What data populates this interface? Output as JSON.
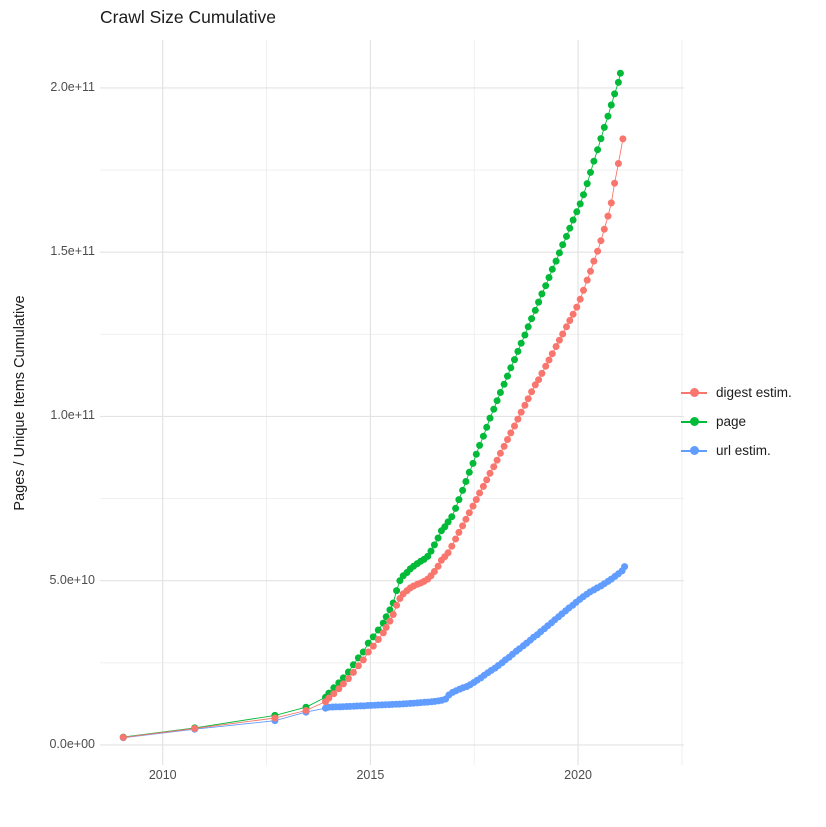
{
  "chart": {
    "title": "Crawl Size Cumulative",
    "ylabel": "Pages / Unique Items Cumulative",
    "xlabel": ""
  },
  "colors": {
    "digest_estim": "#F8766D",
    "page": "#00BA38",
    "url_estim": "#619CFF",
    "grid_major": "#E3E3E3",
    "grid_minor": "#EEEEEE",
    "tick_text": "#4D4D4D",
    "title_text": "#1C1C1C",
    "background": "#FFFFFF"
  },
  "chart_data": {
    "type": "line",
    "markers": true,
    "title": "Crawl Size Cumulative",
    "xlabel": "",
    "ylabel": "Pages / Unique Items Cumulative",
    "x_unit": "year",
    "y_unit": "count (values in billions, 1e9)",
    "xlim": [
      2008.49,
      2022.55
    ],
    "ylim_e9": [
      -6.1,
      214.6
    ],
    "grid": true,
    "legend_position": "right",
    "x_ticks": [
      {
        "value": 2010,
        "label": "2010"
      },
      {
        "value": 2015,
        "label": "2015"
      },
      {
        "value": 2020,
        "label": "2020"
      }
    ],
    "y_ticks": [
      {
        "value_e9": 0,
        "label": "0.0e+00"
      },
      {
        "value_e9": 50,
        "label": "5.0e+10"
      },
      {
        "value_e9": 100,
        "label": "1.0e+11"
      },
      {
        "value_e9": 150,
        "label": "1.5e+11"
      },
      {
        "value_e9": 200,
        "label": "2.0e+11"
      }
    ],
    "x_minor": [
      2012.5,
      2017.5,
      2022.5
    ],
    "y_minor_e9": [
      25,
      75,
      125,
      175
    ],
    "series": [
      {
        "name": "url estim.",
        "color": "#619CFF",
        "points_year_e9": [
          [
            2009.05,
            2.2
          ],
          [
            2010.77,
            4.8
          ],
          [
            2012.7,
            7.4
          ],
          [
            2013.45,
            10.0
          ],
          [
            2013.92,
            11.2
          ],
          [
            2014.0,
            11.5
          ],
          [
            2014.09,
            11.55
          ],
          [
            2014.17,
            11.6
          ],
          [
            2014.26,
            11.6
          ],
          [
            2014.34,
            11.65
          ],
          [
            2014.43,
            11.7
          ],
          [
            2014.51,
            11.75
          ],
          [
            2014.6,
            11.8
          ],
          [
            2014.68,
            11.85
          ],
          [
            2014.77,
            11.9
          ],
          [
            2014.85,
            11.9
          ],
          [
            2014.94,
            12.0
          ],
          [
            2015.02,
            12.05
          ],
          [
            2015.11,
            12.1
          ],
          [
            2015.19,
            12.15
          ],
          [
            2015.28,
            12.2
          ],
          [
            2015.36,
            12.25
          ],
          [
            2015.45,
            12.3
          ],
          [
            2015.53,
            12.35
          ],
          [
            2015.62,
            12.4
          ],
          [
            2015.7,
            12.45
          ],
          [
            2015.79,
            12.5
          ],
          [
            2015.87,
            12.55
          ],
          [
            2015.96,
            12.65
          ],
          [
            2016.04,
            12.7
          ],
          [
            2016.13,
            12.8
          ],
          [
            2016.21,
            12.9
          ],
          [
            2016.3,
            13.0
          ],
          [
            2016.38,
            13.05
          ],
          [
            2016.47,
            13.15
          ],
          [
            2016.55,
            13.25
          ],
          [
            2016.64,
            13.4
          ],
          [
            2016.72,
            13.6
          ],
          [
            2016.81,
            14.0
          ],
          [
            2016.89,
            15.2
          ],
          [
            2016.98,
            16.0
          ],
          [
            2017.06,
            16.5
          ],
          [
            2017.15,
            17.0
          ],
          [
            2017.23,
            17.4
          ],
          [
            2017.32,
            17.8
          ],
          [
            2017.4,
            18.3
          ],
          [
            2017.49,
            19.0
          ],
          [
            2017.57,
            19.7
          ],
          [
            2017.66,
            20.4
          ],
          [
            2017.74,
            21.2
          ],
          [
            2017.83,
            22.0
          ],
          [
            2017.91,
            22.7
          ],
          [
            2018.0,
            23.4
          ],
          [
            2018.08,
            24.2
          ],
          [
            2018.17,
            25.0
          ],
          [
            2018.25,
            25.9
          ],
          [
            2018.34,
            26.7
          ],
          [
            2018.42,
            27.6
          ],
          [
            2018.51,
            28.5
          ],
          [
            2018.59,
            29.3
          ],
          [
            2018.68,
            30.2
          ],
          [
            2018.76,
            31.0
          ],
          [
            2018.85,
            31.9
          ],
          [
            2018.93,
            32.8
          ],
          [
            2019.02,
            33.6
          ],
          [
            2019.1,
            34.5
          ],
          [
            2019.19,
            35.4
          ],
          [
            2019.27,
            36.3
          ],
          [
            2019.36,
            37.2
          ],
          [
            2019.44,
            38.1
          ],
          [
            2019.53,
            39.0
          ],
          [
            2019.61,
            39.9
          ],
          [
            2019.7,
            40.8
          ],
          [
            2019.78,
            41.7
          ],
          [
            2019.87,
            42.5
          ],
          [
            2019.95,
            43.4
          ],
          [
            2020.04,
            44.3
          ],
          [
            2020.12,
            45.1
          ],
          [
            2020.21,
            45.9
          ],
          [
            2020.29,
            46.6
          ],
          [
            2020.38,
            47.2
          ],
          [
            2020.46,
            47.8
          ],
          [
            2020.55,
            48.4
          ],
          [
            2020.63,
            49.1
          ],
          [
            2020.72,
            49.8
          ],
          [
            2020.8,
            50.5
          ],
          [
            2020.89,
            51.3
          ],
          [
            2020.97,
            52.1
          ],
          [
            2021.06,
            53.0
          ],
          [
            2021.12,
            54.3
          ]
        ]
      },
      {
        "name": "page",
        "color": "#00BA38",
        "points_year_e9": [
          [
            2009.05,
            2.4
          ],
          [
            2010.77,
            5.2
          ],
          [
            2012.7,
            9.0
          ],
          [
            2013.45,
            11.5
          ],
          [
            2013.92,
            14.5
          ],
          [
            2014.0,
            15.8
          ],
          [
            2014.12,
            17.4
          ],
          [
            2014.24,
            18.9
          ],
          [
            2014.35,
            20.4
          ],
          [
            2014.47,
            22.2
          ],
          [
            2014.59,
            24.4
          ],
          [
            2014.71,
            26.5
          ],
          [
            2014.83,
            28.3
          ],
          [
            2014.95,
            31.0
          ],
          [
            2015.07,
            32.9
          ],
          [
            2015.19,
            35.0
          ],
          [
            2015.31,
            37.1
          ],
          [
            2015.38,
            39.0
          ],
          [
            2015.47,
            41.1
          ],
          [
            2015.55,
            43.2
          ],
          [
            2015.63,
            47.0
          ],
          [
            2015.71,
            50.0
          ],
          [
            2015.79,
            51.5
          ],
          [
            2015.88,
            52.5
          ],
          [
            2015.96,
            53.6
          ],
          [
            2016.04,
            54.4
          ],
          [
            2016.13,
            55.2
          ],
          [
            2016.21,
            55.9
          ],
          [
            2016.29,
            56.5
          ],
          [
            2016.38,
            57.4
          ],
          [
            2016.46,
            59.0
          ],
          [
            2016.54,
            60.9
          ],
          [
            2016.63,
            63.0
          ],
          [
            2016.71,
            65.2
          ],
          [
            2016.79,
            66.4
          ],
          [
            2016.87,
            67.9
          ],
          [
            2016.96,
            69.5
          ],
          [
            2017.05,
            72.0
          ],
          [
            2017.13,
            74.7
          ],
          [
            2017.22,
            77.5
          ],
          [
            2017.3,
            80.2
          ],
          [
            2017.38,
            83.0
          ],
          [
            2017.47,
            85.7
          ],
          [
            2017.55,
            88.5
          ],
          [
            2017.63,
            91.2
          ],
          [
            2017.72,
            94.0
          ],
          [
            2017.8,
            96.7
          ],
          [
            2017.88,
            99.5
          ],
          [
            2017.97,
            102.2
          ],
          [
            2018.05,
            104.8
          ],
          [
            2018.13,
            107.3
          ],
          [
            2018.22,
            109.8
          ],
          [
            2018.3,
            112.3
          ],
          [
            2018.38,
            114.8
          ],
          [
            2018.47,
            117.3
          ],
          [
            2018.55,
            119.8
          ],
          [
            2018.63,
            122.3
          ],
          [
            2018.72,
            124.8
          ],
          [
            2018.8,
            127.3
          ],
          [
            2018.88,
            129.8
          ],
          [
            2018.97,
            132.3
          ],
          [
            2019.05,
            134.8
          ],
          [
            2019.13,
            137.3
          ],
          [
            2019.22,
            139.8
          ],
          [
            2019.3,
            142.3
          ],
          [
            2019.38,
            144.8
          ],
          [
            2019.47,
            147.3
          ],
          [
            2019.55,
            149.8
          ],
          [
            2019.63,
            152.3
          ],
          [
            2019.72,
            154.8
          ],
          [
            2019.8,
            157.3
          ],
          [
            2019.88,
            159.8
          ],
          [
            2019.97,
            162.3
          ],
          [
            2020.05,
            164.7
          ],
          [
            2020.13,
            167.5
          ],
          [
            2020.22,
            170.9
          ],
          [
            2020.3,
            174.3
          ],
          [
            2020.38,
            177.7
          ],
          [
            2020.47,
            181.2
          ],
          [
            2020.55,
            184.6
          ],
          [
            2020.63,
            188.0
          ],
          [
            2020.72,
            191.4
          ],
          [
            2020.8,
            194.8
          ],
          [
            2020.88,
            198.2
          ],
          [
            2020.97,
            201.7
          ],
          [
            2021.02,
            204.5
          ]
        ]
      },
      {
        "name": "digest estim.",
        "color": "#F8766D",
        "points_year_e9": [
          [
            2009.05,
            2.3
          ],
          [
            2010.77,
            5.0
          ],
          [
            2012.7,
            8.2
          ],
          [
            2013.45,
            10.5
          ],
          [
            2013.92,
            13.2
          ],
          [
            2014.0,
            14.3
          ],
          [
            2014.12,
            15.6
          ],
          [
            2014.24,
            17.1
          ],
          [
            2014.35,
            18.6
          ],
          [
            2014.47,
            20.2
          ],
          [
            2014.59,
            22.1
          ],
          [
            2014.71,
            24.1
          ],
          [
            2014.83,
            25.9
          ],
          [
            2014.95,
            28.3
          ],
          [
            2015.07,
            30.1
          ],
          [
            2015.19,
            32.1
          ],
          [
            2015.31,
            34.1
          ],
          [
            2015.38,
            35.8
          ],
          [
            2015.47,
            37.7
          ],
          [
            2015.55,
            39.7
          ],
          [
            2015.63,
            42.5
          ],
          [
            2015.71,
            44.6
          ],
          [
            2015.79,
            46.0
          ],
          [
            2015.88,
            47.0
          ],
          [
            2015.96,
            47.8
          ],
          [
            2016.04,
            48.4
          ],
          [
            2016.13,
            48.9
          ],
          [
            2016.21,
            49.3
          ],
          [
            2016.29,
            49.8
          ],
          [
            2016.38,
            50.5
          ],
          [
            2016.46,
            51.5
          ],
          [
            2016.54,
            52.8
          ],
          [
            2016.63,
            54.4
          ],
          [
            2016.71,
            56.2
          ],
          [
            2016.79,
            57.3
          ],
          [
            2016.87,
            58.5
          ],
          [
            2016.96,
            60.5
          ],
          [
            2017.05,
            62.7
          ],
          [
            2017.13,
            64.7
          ],
          [
            2017.22,
            66.7
          ],
          [
            2017.3,
            68.7
          ],
          [
            2017.38,
            70.7
          ],
          [
            2017.47,
            72.7
          ],
          [
            2017.55,
            74.7
          ],
          [
            2017.63,
            76.7
          ],
          [
            2017.72,
            78.7
          ],
          [
            2017.8,
            80.7
          ],
          [
            2017.88,
            82.7
          ],
          [
            2017.97,
            84.7
          ],
          [
            2018.05,
            86.7
          ],
          [
            2018.13,
            88.8
          ],
          [
            2018.22,
            90.9
          ],
          [
            2018.3,
            93.0
          ],
          [
            2018.38,
            95.0
          ],
          [
            2018.47,
            97.1
          ],
          [
            2018.55,
            99.2
          ],
          [
            2018.63,
            101.3
          ],
          [
            2018.72,
            103.4
          ],
          [
            2018.8,
            105.4
          ],
          [
            2018.88,
            107.5
          ],
          [
            2018.97,
            109.6
          ],
          [
            2019.05,
            111.2
          ],
          [
            2019.13,
            113.1
          ],
          [
            2019.22,
            115.3
          ],
          [
            2019.3,
            117.2
          ],
          [
            2019.38,
            119.1
          ],
          [
            2019.47,
            121.3
          ],
          [
            2019.55,
            123.2
          ],
          [
            2019.63,
            125.1
          ],
          [
            2019.72,
            127.3
          ],
          [
            2019.8,
            129.2
          ],
          [
            2019.88,
            131.1
          ],
          [
            2019.97,
            133.3
          ],
          [
            2020.05,
            135.7
          ],
          [
            2020.13,
            138.4
          ],
          [
            2020.22,
            141.5
          ],
          [
            2020.3,
            144.2
          ],
          [
            2020.38,
            147.3
          ],
          [
            2020.47,
            150.3
          ],
          [
            2020.55,
            153.5
          ],
          [
            2020.63,
            157.0
          ],
          [
            2020.72,
            161.0
          ],
          [
            2020.8,
            165.0
          ],
          [
            2020.88,
            171.0
          ],
          [
            2020.97,
            177.0
          ],
          [
            2021.08,
            184.5
          ]
        ]
      }
    ],
    "legend": [
      {
        "label": "digest estim.",
        "color": "#F8766D"
      },
      {
        "label": "page",
        "color": "#00BA38"
      },
      {
        "label": "url estim.",
        "color": "#619CFF"
      }
    ]
  }
}
